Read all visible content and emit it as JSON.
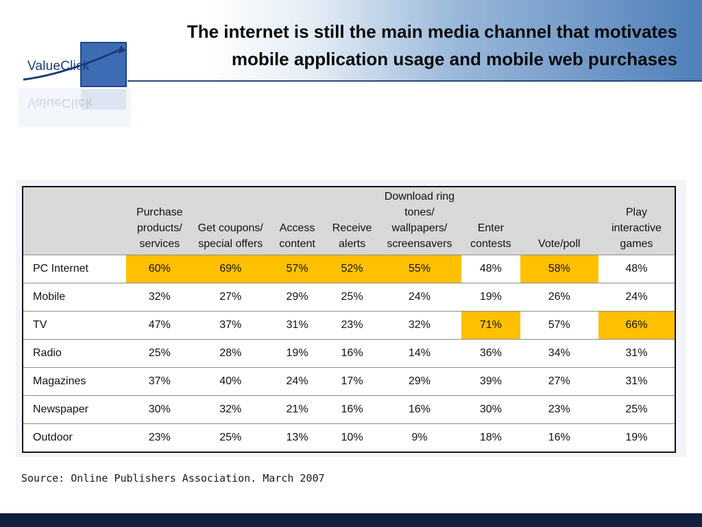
{
  "header": {
    "title_line1": "The internet is still the main media channel that motivates",
    "title_line2": "mobile application usage and mobile web purchases",
    "logo_text": "ValueClick"
  },
  "colors": {
    "highlight": "#ffc000",
    "header_blue": "#4f7fb9",
    "footer": "#10203f"
  },
  "table": {
    "columns": [
      "",
      "Purchase products/ services",
      "Get coupons/ special offers",
      "Access content",
      "Receive alerts",
      "Download ring tones/ wallpapers/ screensavers",
      "Enter contests",
      "Vote/poll",
      "Play interactive games"
    ],
    "rows": [
      {
        "label": "PC Internet",
        "cells": [
          "60%",
          "69%",
          "57%",
          "52%",
          "55%",
          "48%",
          "58%",
          "48%"
        ],
        "highlight": [
          0,
          1,
          2,
          3,
          4,
          6
        ]
      },
      {
        "label": "Mobile",
        "cells": [
          "32%",
          "27%",
          "29%",
          "25%",
          "24%",
          "19%",
          "26%",
          "24%"
        ],
        "highlight": []
      },
      {
        "label": "TV",
        "cells": [
          "47%",
          "37%",
          "31%",
          "23%",
          "32%",
          "71%",
          "57%",
          "66%"
        ],
        "highlight": [
          5,
          7
        ]
      },
      {
        "label": "Radio",
        "cells": [
          "25%",
          "28%",
          "19%",
          "16%",
          "14%",
          "36%",
          "34%",
          "31%"
        ],
        "highlight": []
      },
      {
        "label": "Magazines",
        "cells": [
          "37%",
          "40%",
          "24%",
          "17%",
          "29%",
          "39%",
          "27%",
          "31%"
        ],
        "highlight": []
      },
      {
        "label": "Newspaper",
        "cells": [
          "30%",
          "32%",
          "21%",
          "16%",
          "16%",
          "30%",
          "23%",
          "25%"
        ],
        "highlight": []
      },
      {
        "label": "Outdoor",
        "cells": [
          "23%",
          "25%",
          "13%",
          "10%",
          "9%",
          "18%",
          "16%",
          "19%"
        ],
        "highlight": []
      }
    ]
  },
  "source": "Source: Online Publishers Association. March 2007"
}
